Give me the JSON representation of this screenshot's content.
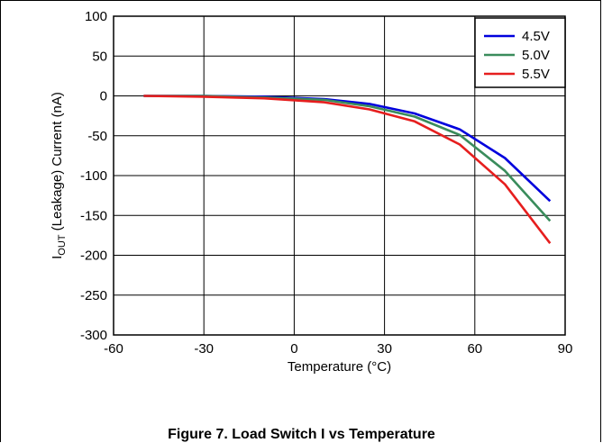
{
  "chart_data": {
    "type": "line",
    "xlabel": "Temperature (°C)",
    "ylabel": "IOUT (Leakage) Current (nA)",
    "ylabel_main": "I",
    "ylabel_sub": "OUT",
    "ylabel_rest": " (Leakage) Current (nA)",
    "caption": "Figure 7. Load Switch I",
    "caption_rest": " vs Temperature",
    "xlim": [
      -60,
      90
    ],
    "ylim": [
      -300,
      100
    ],
    "xticks": [
      "-60",
      "-30",
      "0",
      "30",
      "60",
      "90"
    ],
    "yticks": [
      "100",
      "50",
      "0",
      "-50",
      "-100",
      "-150",
      "-200",
      "-250",
      "-300"
    ],
    "grid": true,
    "legend_position": "top-right",
    "series": [
      {
        "name": "4.5V",
        "color": "#0000dd",
        "x": [
          -50,
          -30,
          -10,
          10,
          25,
          40,
          55,
          70,
          85
        ],
        "y": [
          0,
          0,
          -1,
          -4,
          -10,
          -22,
          -42,
          -78,
          -132
        ]
      },
      {
        "name": "5.0V",
        "color": "#3a8c5c",
        "x": [
          -50,
          -30,
          -10,
          10,
          25,
          40,
          55,
          70,
          85
        ],
        "y": [
          0,
          0,
          -2,
          -5,
          -13,
          -26,
          -49,
          -94,
          -157
        ]
      },
      {
        "name": "5.5V",
        "color": "#e61e1e",
        "x": [
          -50,
          -30,
          -10,
          10,
          25,
          40,
          55,
          70,
          85
        ],
        "y": [
          0,
          -1,
          -3,
          -8,
          -17,
          -32,
          -61,
          -111,
          -185
        ]
      }
    ]
  }
}
